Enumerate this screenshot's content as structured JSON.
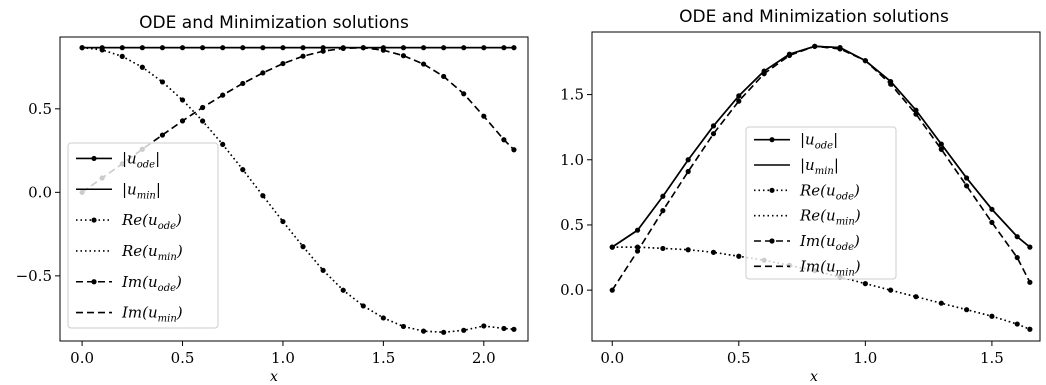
{
  "chart_data": [
    {
      "type": "line",
      "title": "ODE and Minimization solutions",
      "xlabel": "x",
      "ylabel": "",
      "xlim": [
        -0.11,
        2.22
      ],
      "ylim": [
        -0.89,
        0.93
      ],
      "xticks": [
        0.0,
        0.5,
        1.0,
        1.5,
        2.0
      ],
      "xtick_labels": [
        "0.0",
        "0.5",
        "1.0",
        "1.5",
        "2.0"
      ],
      "yticks": [
        -0.5,
        0.0,
        0.5
      ],
      "ytick_labels": [
        "−0.5",
        "0.0",
        "0.5"
      ],
      "grid": false,
      "legend_position": "center-left",
      "x": [
        0.0,
        0.1,
        0.2,
        0.3,
        0.4,
        0.5,
        0.6,
        0.7,
        0.8,
        0.9,
        1.0,
        1.1,
        1.2,
        1.3,
        1.4,
        1.5,
        1.6,
        1.7,
        1.8,
        1.9,
        2.0,
        2.1,
        2.15
      ],
      "series": [
        {
          "name": "|u_ode|",
          "style": "solid",
          "marker": true,
          "values": [
            0.866,
            0.866,
            0.866,
            0.866,
            0.866,
            0.866,
            0.866,
            0.866,
            0.866,
            0.866,
            0.866,
            0.866,
            0.866,
            0.866,
            0.866,
            0.866,
            0.866,
            0.866,
            0.866,
            0.866,
            0.866,
            0.866,
            0.866
          ]
        },
        {
          "name": "|u_min|",
          "style": "solid",
          "marker": false,
          "values": [
            0.866,
            0.866,
            0.866,
            0.866,
            0.866,
            0.866,
            0.866,
            0.866,
            0.866,
            0.866,
            0.866,
            0.866,
            0.866,
            0.866,
            0.866,
            0.866,
            0.866,
            0.866,
            0.866,
            0.866,
            0.866,
            0.866,
            0.866
          ]
        },
        {
          "name": "Re(u_ode)",
          "style": "dotted",
          "marker": true,
          "values": [
            0.866,
            0.853,
            0.814,
            0.749,
            0.661,
            0.553,
            0.427,
            0.287,
            0.136,
            -0.02,
            -0.175,
            -0.325,
            -0.467,
            -0.586,
            -0.68,
            -0.752,
            -0.803,
            -0.831,
            -0.838,
            -0.826,
            -0.8,
            -0.815,
            -0.82
          ]
        },
        {
          "name": "Re(u_min)",
          "style": "dotted",
          "marker": false,
          "values": [
            0.866,
            0.853,
            0.814,
            0.749,
            0.661,
            0.553,
            0.427,
            0.287,
            0.136,
            -0.02,
            -0.175,
            -0.325,
            -0.467,
            -0.586,
            -0.68,
            -0.752,
            -0.803,
            -0.831,
            -0.838,
            -0.826,
            -0.8,
            -0.815,
            -0.82
          ]
        },
        {
          "name": "Im(u_ode)",
          "style": "dashed",
          "marker": true,
          "values": [
            0.0,
            0.086,
            0.171,
            0.258,
            0.343,
            0.428,
            0.508,
            0.582,
            0.652,
            0.715,
            0.771,
            0.815,
            0.845,
            0.862,
            0.866,
            0.851,
            0.818,
            0.768,
            0.694,
            0.59,
            0.456,
            0.315,
            0.255
          ]
        },
        {
          "name": "Im(u_min)",
          "style": "dashed",
          "marker": false,
          "values": [
            0.0,
            0.086,
            0.171,
            0.258,
            0.343,
            0.428,
            0.508,
            0.582,
            0.652,
            0.715,
            0.771,
            0.815,
            0.845,
            0.862,
            0.866,
            0.851,
            0.818,
            0.768,
            0.694,
            0.59,
            0.456,
            0.315,
            0.255
          ]
        }
      ],
      "legend": [
        "|u_ode|",
        "|u_min|",
        "Re(u_ode)",
        "Re(u_min)",
        "Im(u_ode)",
        "Im(u_min)"
      ]
    },
    {
      "type": "line",
      "title": "ODE and Minimization solutions",
      "xlabel": "x",
      "ylabel": "",
      "xlim": [
        -0.08,
        1.69
      ],
      "ylim": [
        -0.39,
        1.98
      ],
      "xticks": [
        0.0,
        0.5,
        1.0,
        1.5
      ],
      "xtick_labels": [
        "0.0",
        "0.5",
        "1.0",
        "1.5"
      ],
      "yticks": [
        0.0,
        0.5,
        1.0,
        1.5
      ],
      "ytick_labels": [
        "0.0",
        "0.5",
        "1.0",
        "1.5"
      ],
      "grid": false,
      "legend_position": "center",
      "x": [
        0.0,
        0.1,
        0.2,
        0.3,
        0.4,
        0.5,
        0.6,
        0.7,
        0.8,
        0.9,
        1.0,
        1.1,
        1.2,
        1.3,
        1.4,
        1.5,
        1.6,
        1.65
      ],
      "series": [
        {
          "name": "|u_ode|",
          "style": "solid",
          "marker": true,
          "values": [
            0.33,
            0.46,
            0.72,
            1.0,
            1.26,
            1.49,
            1.68,
            1.81,
            1.87,
            1.86,
            1.76,
            1.6,
            1.38,
            1.12,
            0.86,
            0.62,
            0.41,
            0.33
          ]
        },
        {
          "name": "|u_min|",
          "style": "solid",
          "marker": false,
          "values": [
            0.33,
            0.46,
            0.72,
            1.0,
            1.26,
            1.49,
            1.68,
            1.81,
            1.87,
            1.86,
            1.76,
            1.6,
            1.38,
            1.12,
            0.86,
            0.62,
            0.41,
            0.33
          ]
        },
        {
          "name": "Re(u_ode)",
          "style": "dotted",
          "marker": true,
          "values": [
            0.33,
            0.33,
            0.32,
            0.31,
            0.29,
            0.26,
            0.23,
            0.19,
            0.15,
            0.1,
            0.05,
            0.0,
            -0.05,
            -0.1,
            -0.15,
            -0.2,
            -0.26,
            -0.3
          ]
        },
        {
          "name": "Re(u_min)",
          "style": "dotted",
          "marker": false,
          "values": [
            0.33,
            0.33,
            0.32,
            0.31,
            0.29,
            0.26,
            0.23,
            0.19,
            0.15,
            0.1,
            0.05,
            0.0,
            -0.05,
            -0.1,
            -0.15,
            -0.2,
            -0.26,
            -0.3
          ]
        },
        {
          "name": "Im(u_ode)",
          "style": "dashed",
          "marker": true,
          "values": [
            0.0,
            0.3,
            0.61,
            0.91,
            1.2,
            1.45,
            1.66,
            1.8,
            1.87,
            1.85,
            1.76,
            1.58,
            1.35,
            1.08,
            0.8,
            0.52,
            0.25,
            0.06
          ]
        },
        {
          "name": "Im(u_min)",
          "style": "dashed",
          "marker": false,
          "values": [
            0.0,
            0.3,
            0.61,
            0.91,
            1.2,
            1.45,
            1.66,
            1.8,
            1.87,
            1.85,
            1.76,
            1.58,
            1.35,
            1.08,
            0.8,
            0.52,
            0.25,
            0.06
          ]
        }
      ],
      "legend": [
        "|u_ode|",
        "|u_min|",
        "Re(u_ode)",
        "Re(u_min)",
        "Im(u_ode)",
        "Im(u_min)"
      ]
    }
  ]
}
